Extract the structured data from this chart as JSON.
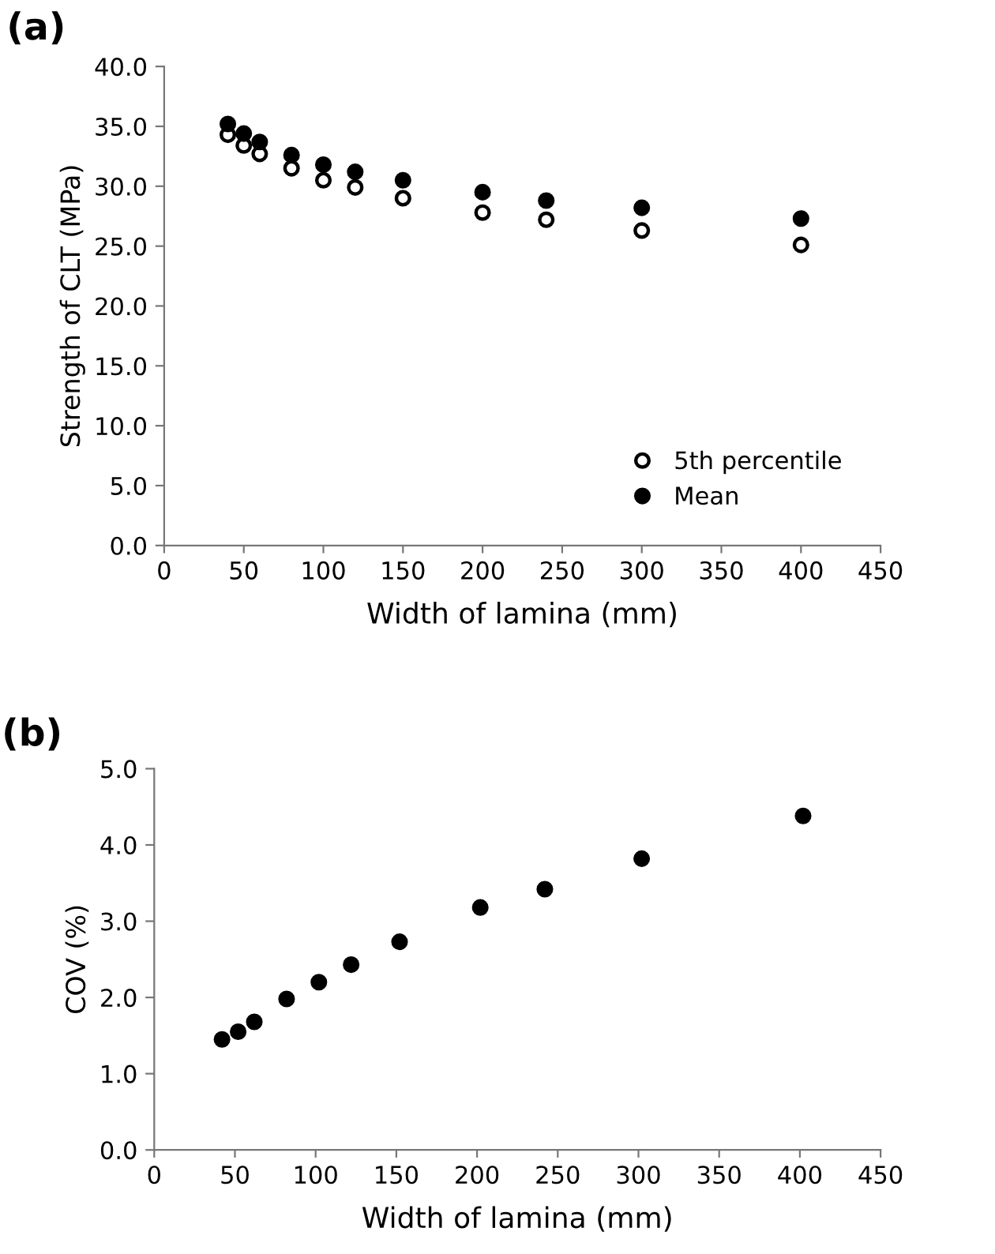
{
  "chart_data": [
    {
      "type": "scatter",
      "title": "(a)",
      "xlabel": "Width of lamina (mm)",
      "ylabel": "Strength of CLT (MPa)",
      "x": [
        40,
        50,
        60,
        80,
        100,
        120,
        150,
        200,
        240,
        300,
        400
      ],
      "series": [
        {
          "name": "5th percentile",
          "color": "#ffffff",
          "values": [
            34.3,
            33.4,
            32.7,
            31.5,
            30.5,
            29.9,
            29.0,
            27.8,
            27.2,
            26.3,
            25.1
          ]
        },
        {
          "name": "Mean",
          "color": "#000000",
          "values": [
            35.2,
            34.4,
            33.7,
            32.6,
            31.8,
            31.2,
            30.5,
            29.5,
            28.8,
            28.2,
            27.3
          ]
        }
      ],
      "xlim": [
        0,
        450
      ],
      "xticks": [
        0,
        50,
        100,
        150,
        200,
        250,
        300,
        350,
        400,
        450
      ],
      "ylim": [
        0,
        40
      ],
      "yticks": [
        {
          "value": 0,
          "label": "0.0"
        },
        {
          "value": 5,
          "label": "5.0"
        },
        {
          "value": 10,
          "label": "10.0"
        },
        {
          "value": 15,
          "label": "15.0"
        },
        {
          "value": 20,
          "label": "20.0"
        },
        {
          "value": 25,
          "label": "25.0"
        },
        {
          "value": 30,
          "label": "30.0"
        },
        {
          "value": 35,
          "label": "35.0"
        },
        {
          "value": 40,
          "label": "40.0"
        }
      ],
      "grid": false,
      "legend": "bottom right",
      "marker": "circle"
    },
    {
      "type": "scatter",
      "title": "(b)",
      "xlabel": "Width of lamina (mm)",
      "ylabel": "COV (%)",
      "x": [
        42,
        52,
        62,
        82,
        102,
        122,
        152,
        202,
        242,
        302,
        402
      ],
      "series": [
        {
          "color": "#000000",
          "values": [
            1.45,
            1.55,
            1.68,
            1.98,
            2.2,
            2.43,
            2.73,
            3.18,
            3.42,
            3.82,
            4.38
          ]
        }
      ],
      "xlim": [
        0,
        450
      ],
      "xticks": [
        0,
        50,
        100,
        150,
        200,
        250,
        300,
        350,
        400,
        450
      ],
      "ylim": [
        0,
        5
      ],
      "yticks": [
        {
          "value": 0,
          "label": "0.0"
        },
        {
          "value": 1,
          "label": "1.0"
        },
        {
          "value": 2,
          "label": "2.0"
        },
        {
          "value": 3,
          "label": "3.0"
        },
        {
          "value": 4,
          "label": "4.0"
        },
        {
          "value": 5,
          "label": "5.0"
        }
      ],
      "grid": false,
      "legend": false,
      "marker": "circle"
    }
  ]
}
